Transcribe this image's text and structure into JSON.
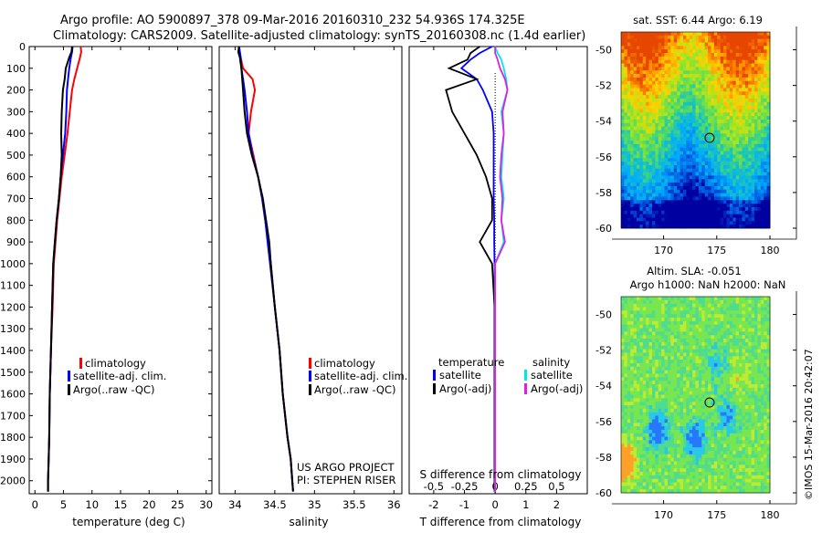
{
  "header": {
    "title_line1": "Argo profile: AO 5900897_378 09-Mar-2016 20160310_232 54.936S 174.325E",
    "title_line2": "Climatology: CARS2009. Satellite-adjusted climatology: synTS_20160308.nc (1.4d earlier)"
  },
  "colors": {
    "climatology": "#ff0000",
    "satellite": "#0000ff",
    "argo": "#000000",
    "salinity_satellite": "#00e5ee",
    "salinity_argo": "#e020e0"
  },
  "depth_ticks": [
    "0",
    "100",
    "200",
    "300",
    "400",
    "500",
    "600",
    "700",
    "800",
    "900",
    "1000",
    "1100",
    "1200",
    "1300",
    "1400",
    "1500",
    "1600",
    "1700",
    "1800",
    "1900",
    "2000"
  ],
  "chart_data": [
    {
      "type": "line",
      "xlabel": "temperature (deg C)",
      "ylabel": "",
      "xlim": [
        -1,
        31
      ],
      "ylim": [
        0,
        2060
      ],
      "xticks": [
        "0",
        "5",
        "10",
        "15",
        "20",
        "25",
        "30"
      ],
      "legend": [
        "climatology",
        "satellite-adj. clim.",
        "Argo(..raw -QC)"
      ],
      "series": [
        {
          "name": "climatology",
          "x": [
            8.0,
            8.1,
            7.9,
            7.4,
            6.9,
            6.5,
            6.1,
            5.7,
            5.2,
            4.7,
            4.3,
            3.9,
            3.6,
            3.3,
            3.1,
            2.8,
            2.6,
            2.5,
            2.4,
            2.3,
            2.3
          ],
          "y": [
            0,
            25,
            50,
            100,
            150,
            200,
            300,
            400,
            500,
            600,
            700,
            800,
            900,
            1000,
            1200,
            1400,
            1600,
            1800,
            1900,
            2000,
            2050
          ]
        },
        {
          "name": "satellite-adj. clim.",
          "x": [
            6.6,
            6.5,
            6.3,
            6.0,
            5.8,
            5.6,
            5.5,
            5.3,
            4.9,
            4.5,
            4.2,
            3.8,
            3.5,
            3.2,
            3.0,
            2.8,
            2.6,
            2.5,
            2.4,
            2.3,
            2.3
          ],
          "y": [
            0,
            25,
            50,
            100,
            150,
            200,
            300,
            400,
            500,
            600,
            700,
            800,
            900,
            1000,
            1200,
            1400,
            1600,
            1800,
            1900,
            2000,
            2050
          ]
        },
        {
          "name": "Argo(..raw -QC)",
          "x": [
            6.5,
            6.4,
            6.0,
            5.4,
            5.2,
            4.9,
            4.7,
            4.6,
            4.7,
            4.5,
            4.2,
            3.8,
            3.5,
            3.2,
            3.0,
            2.8,
            2.6,
            2.5,
            2.4,
            2.3,
            2.3
          ],
          "y": [
            0,
            25,
            50,
            100,
            150,
            200,
            300,
            400,
            500,
            600,
            700,
            800,
            900,
            1000,
            1200,
            1400,
            1600,
            1800,
            1900,
            2000,
            2050
          ]
        }
      ]
    },
    {
      "type": "line",
      "xlabel": "salinity",
      "ylabel": "",
      "xlim": [
        33.8,
        36.1
      ],
      "ylim": [
        0,
        2060
      ],
      "xticks": [
        "34",
        "34.5",
        "35",
        "35.5",
        "36"
      ],
      "legend": [
        "climatology",
        "satellite-adj. clim.",
        "Argo(..raw -QC)"
      ],
      "annotation_line1": "US ARGO PROJECT",
      "annotation_line2": "PI: STEPHEN RISER",
      "series": [
        {
          "name": "climatology",
          "x": [
            34.05,
            34.06,
            34.07,
            34.1,
            34.22,
            34.25,
            34.2,
            34.17,
            34.23,
            34.29,
            34.34,
            34.38,
            34.42,
            34.45,
            34.5,
            34.56,
            34.6,
            34.66,
            34.7,
            34.72,
            34.73
          ],
          "y": [
            0,
            25,
            50,
            100,
            150,
            200,
            300,
            400,
            500,
            600,
            700,
            800,
            900,
            1000,
            1200,
            1400,
            1600,
            1800,
            1900,
            2000,
            2050
          ]
        },
        {
          "name": "satellite-adj. clim.",
          "x": [
            34.05,
            34.06,
            34.07,
            34.08,
            34.1,
            34.12,
            34.15,
            34.17,
            34.22,
            34.29,
            34.34,
            34.38,
            34.41,
            34.44,
            34.5,
            34.56,
            34.6,
            34.66,
            34.7,
            34.72,
            34.73
          ],
          "y": [
            0,
            25,
            50,
            100,
            150,
            200,
            300,
            400,
            500,
            600,
            700,
            800,
            900,
            1000,
            1200,
            1400,
            1600,
            1800,
            1900,
            2000,
            2050
          ]
        },
        {
          "name": "Argo(..raw -QC)",
          "x": [
            34.05,
            34.04,
            34.06,
            34.08,
            34.09,
            34.1,
            34.12,
            34.15,
            34.21,
            34.29,
            34.35,
            34.39,
            34.43,
            34.45,
            34.5,
            34.56,
            34.6,
            34.66,
            34.7,
            34.72,
            34.73
          ],
          "y": [
            0,
            25,
            50,
            100,
            150,
            200,
            300,
            400,
            500,
            600,
            700,
            800,
            900,
            1000,
            1200,
            1400,
            1600,
            1800,
            1900,
            2000,
            2050
          ]
        }
      ]
    },
    {
      "type": "line",
      "xlabel": "T difference from climatology",
      "ylabel": "",
      "xlim": [
        -2.8,
        3.0
      ],
      "ylim": [
        0,
        2060
      ],
      "xticks": [
        "-2",
        "-1",
        "0",
        "1",
        "2"
      ],
      "top_label": "S difference from climatology",
      "s_ticks": [
        "-0.5",
        "-0.25",
        "0",
        "0.25",
        "0.5"
      ],
      "legend_temperature_heading": "temperature",
      "legend_salinity_heading": "salinity",
      "legend": [
        "satellite",
        "Argo(-adj)",
        "satellite",
        "Argo(-adj)"
      ],
      "series": [
        {
          "name": "satellite",
          "x": [
            -0.1,
            -0.5,
            -0.8,
            -1.1,
            -0.6,
            -0.4,
            -0.1,
            -0.05,
            -0.05,
            -0.05,
            -0.05,
            -0.03,
            -0.03,
            -0.02,
            -0.02,
            -0.02,
            -0.02,
            -0.02,
            -0.02,
            -0.02,
            -0.02
          ],
          "y": [
            0,
            30,
            60,
            100,
            150,
            200,
            300,
            400,
            500,
            600,
            700,
            800,
            900,
            1000,
            1200,
            1400,
            1600,
            1800,
            1900,
            2000,
            2050
          ]
        },
        {
          "name": "Argo(-adj)",
          "x": [
            -0.5,
            -0.8,
            -0.9,
            -1.5,
            -0.6,
            -1.6,
            -1.4,
            -1.0,
            -0.6,
            -0.3,
            -0.1,
            -0.1,
            -0.5,
            -0.1,
            -0.02,
            -0.02,
            -0.02,
            -0.02,
            -0.02,
            -0.02,
            -0.02
          ],
          "y": [
            0,
            30,
            60,
            100,
            150,
            200,
            300,
            400,
            500,
            600,
            700,
            800,
            900,
            1000,
            1200,
            1400,
            1600,
            1800,
            1900,
            2000,
            2050
          ]
        },
        {
          "name": "satellite",
          "x": [
            0.0,
            0.02,
            0.05,
            0.07,
            0.09,
            0.1,
            0.05,
            0.07,
            0.06,
            0.05,
            0.07,
            0.05,
            0.07,
            0.0,
            0.0,
            0.0,
            0.0,
            0.0,
            0.0,
            0.0,
            0.0
          ],
          "y": [
            0,
            30,
            60,
            100,
            150,
            200,
            300,
            400,
            500,
            600,
            700,
            800,
            900,
            1000,
            1200,
            1400,
            1600,
            1800,
            1900,
            2000,
            2050
          ]
        },
        {
          "name": "Argo(-adj)",
          "x": [
            0.0,
            0.0,
            0.02,
            0.04,
            0.08,
            0.1,
            0.06,
            0.07,
            0.05,
            0.04,
            0.06,
            0.05,
            0.08,
            0.0,
            0.0,
            0.0,
            0.0,
            0.0,
            0.0,
            0.0,
            0.0
          ],
          "y": [
            0,
            30,
            60,
            100,
            150,
            200,
            300,
            400,
            500,
            600,
            700,
            800,
            900,
            1000,
            1200,
            1400,
            1600,
            1800,
            1900,
            2000,
            2050
          ]
        }
      ]
    },
    {
      "type": "heatmap",
      "title": "sat. SST: 6.44  Argo: 6.19",
      "xlim": [
        166,
        180
      ],
      "ylim": [
        -60,
        -49
      ],
      "xticks": [
        "170",
        "175",
        "180"
      ],
      "yticks": [
        "-50",
        "-52",
        "-54",
        "-56",
        "-58",
        "-60"
      ],
      "marker": {
        "lon": 174.325,
        "lat": -54.936
      }
    },
    {
      "type": "heatmap",
      "title_line1": "Altim. SLA: -0.051",
      "title_line2": "Argo h1000: NaN h2000: NaN",
      "xlim": [
        166,
        180
      ],
      "ylim": [
        -60,
        -49
      ],
      "xticks": [
        "170",
        "175",
        "180"
      ],
      "yticks": [
        "-50",
        "-52",
        "-54",
        "-56",
        "-58",
        "-60"
      ],
      "marker": {
        "lon": 174.325,
        "lat": -54.936
      }
    }
  ],
  "credit": "©IMOS 15-Mar-2016 20:42:07"
}
